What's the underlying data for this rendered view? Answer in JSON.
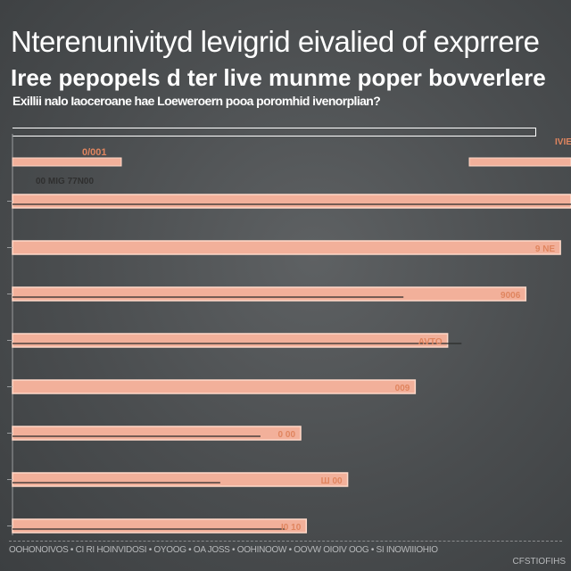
{
  "chart_data": {
    "type": "bar",
    "orientation": "horizontal",
    "title": "Nterenunivityd levigrid eivalied of exprrere",
    "subtitle": "Iree pepopels d ter live munme poper bovverlere",
    "caption": "Exillii nalo Iaoceroane hae Loeweroern pooa poromhid ivenorplian?",
    "top_labels": {
      "left": "0/001",
      "right": "IVIE"
    },
    "categories": [
      "",
      "",
      "",
      "",
      "",
      "",
      "",
      ""
    ],
    "values": [
      100,
      98.1,
      91.9,
      77.9,
      72.1,
      51.6,
      60.0,
      52.6
    ],
    "data_labels": [
      "00 MIG 77N00",
      "9 NE",
      "9006",
      "AVTO",
      "009",
      "0 00",
      "Ш 00",
      "I0 10"
    ],
    "overlay_values": [
      100,
      0,
      70.0,
      80.4,
      0,
      44.4,
      37.2,
      48.8
    ],
    "value_max": 100,
    "colors": {
      "bar": "#f2b09a",
      "bar_edge": "#ffd9c9",
      "overlay_line": "#2b2b2b",
      "label": "#e0855f",
      "background": "#4f5254"
    }
  },
  "footer": {
    "left": "OOHONOIVOS • CI RI HOINVIDOSI • OYOOG • OA JOSS • OOHINOOW • OOVW OIOIV OOG • SI INOWIIIOHIO",
    "right": "CFSTIOFIHS"
  }
}
